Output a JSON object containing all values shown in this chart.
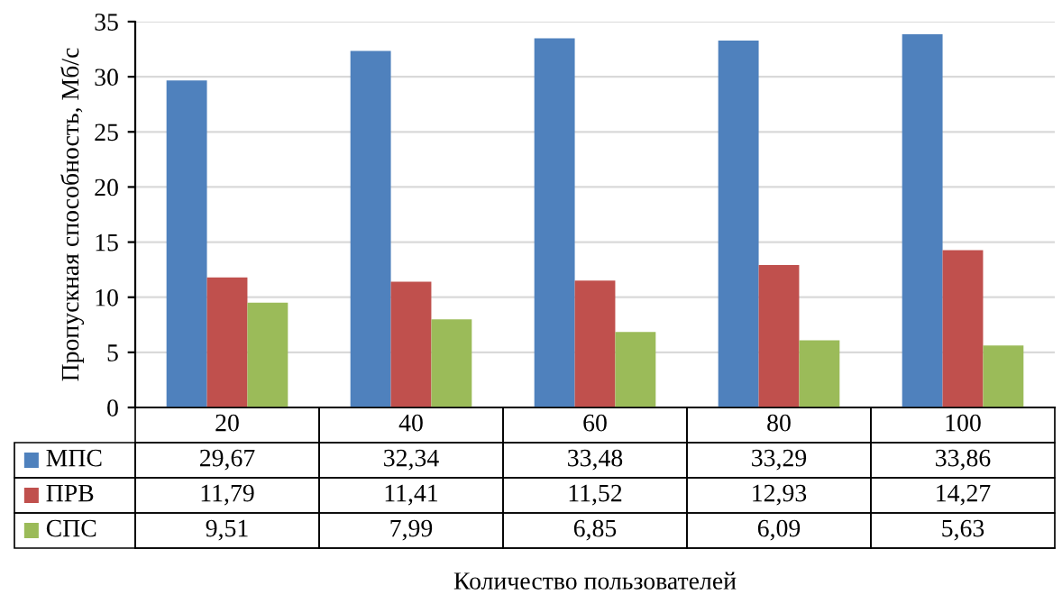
{
  "chart_data": {
    "type": "bar",
    "categories": [
      "20",
      "40",
      "60",
      "80",
      "100"
    ],
    "series": [
      {
        "name": "МПС",
        "color": "#4f81bd",
        "values": [
          29.67,
          32.34,
          33.48,
          33.29,
          33.86
        ],
        "value_labels": [
          "29,67",
          "32,34",
          "33,48",
          "33,29",
          "33,86"
        ]
      },
      {
        "name": "ПРВ",
        "color": "#c0504d",
        "values": [
          11.79,
          11.41,
          11.52,
          12.93,
          14.27
        ],
        "value_labels": [
          "11,79",
          "11,41",
          "11,52",
          "12,93",
          "14,27"
        ]
      },
      {
        "name": "СПС",
        "color": "#9bbb59",
        "values": [
          9.51,
          7.99,
          6.85,
          6.09,
          5.63
        ],
        "value_labels": [
          "9,51",
          "7,99",
          "6,85",
          "6,09",
          "5,63"
        ]
      }
    ],
    "annotations": [
      "Количество пользователей"
    ],
    "ylabel": "Пропускная способность, Мб/с",
    "ylim": [
      0,
      35
    ],
    "yticks": [
      0,
      5,
      10,
      15,
      20,
      25,
      30,
      35
    ],
    "grid": "y",
    "legend": "bottom"
  }
}
